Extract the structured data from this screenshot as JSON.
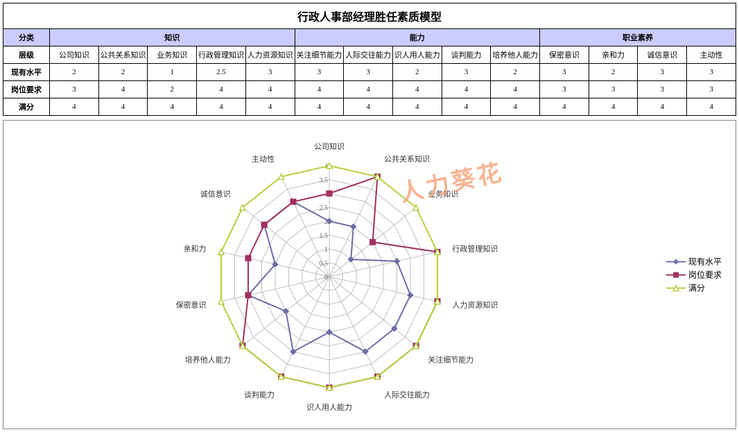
{
  "title": "行政人事部经理胜任素质模型",
  "rowLabels": {
    "category": "分类",
    "level": "层级",
    "series1": "现有水平",
    "series2": "岗位要求",
    "series3": "满分"
  },
  "categories": [
    {
      "name": "知识",
      "span": 5
    },
    {
      "name": "能力",
      "span": 5
    },
    {
      "name": "职业素养",
      "span": 4
    }
  ],
  "axes": [
    "公司知识",
    "公共关系知识",
    "业务知识",
    "行政管理知识",
    "人力资源知识",
    "关注细节能力",
    "人际交往能力",
    "识人用人能力",
    "谈判能力",
    "培养他人能力",
    "保密意识",
    "亲和力",
    "诚信意识",
    "主动性"
  ],
  "series": [
    {
      "name": "现有水平",
      "color": "#6d6da7",
      "marker": "diamond",
      "data": [
        2,
        2,
        1,
        2.5,
        3,
        3,
        3,
        2,
        3,
        2,
        3,
        2,
        3,
        3
      ]
    },
    {
      "name": "岗位要求",
      "color": "#a03060",
      "marker": "square",
      "data": [
        3,
        4,
        2,
        4,
        4,
        4,
        4,
        4,
        4,
        4,
        3,
        3,
        3,
        3
      ]
    },
    {
      "name": "满分",
      "color": "#b4d040",
      "marker": "triangle",
      "data": [
        4,
        4,
        4,
        4,
        4,
        4,
        4,
        4,
        4,
        4,
        4,
        4,
        4,
        4
      ]
    }
  ],
  "radar": {
    "max": 4,
    "ticks": [
      0,
      0.5,
      1,
      1.5,
      2,
      2.5,
      3,
      3.5,
      4
    ],
    "gridColor": "#bfbfbf",
    "labelFontSize": 11,
    "tickFontSize": 10,
    "background": "#ffffff"
  },
  "watermark": "人力葵花"
}
